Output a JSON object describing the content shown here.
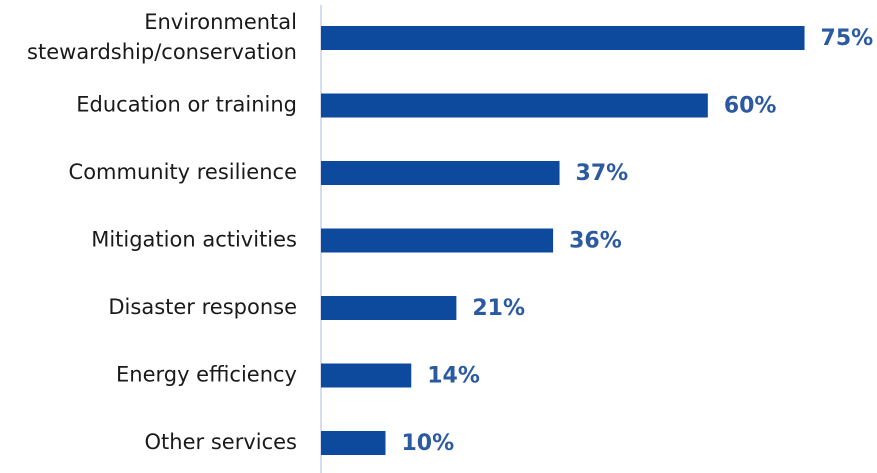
{
  "chart_data": {
    "type": "hbar",
    "categories": [
      "Environmental\nstewardship/conservation",
      "Education or training",
      "Community resilience",
      "Mitigation activities",
      "Disaster response",
      "Energy efficiency",
      "Other services"
    ],
    "values": [
      75,
      60,
      37,
      36,
      21,
      14,
      10
    ],
    "value_labels": [
      "75%",
      "60%",
      "37%",
      "36%",
      "21%",
      "14%",
      "10%"
    ],
    "color": "#0d4a9e",
    "xlim": [
      0,
      85
    ]
  }
}
